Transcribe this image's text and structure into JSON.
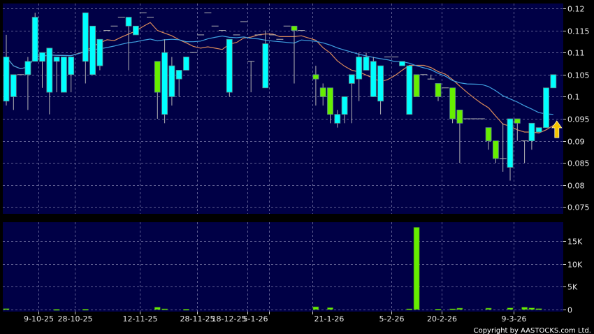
{
  "chart_data": [
    {
      "type": "candlestick",
      "panel": "price",
      "y_ticks": [
        0.12,
        0.115,
        0.11,
        0.105,
        0.1,
        0.095,
        0.09,
        0.085,
        0.08,
        0.075
      ],
      "y_tick_labels": [
        "0.12",
        "0.115",
        "0.11",
        "0.105",
        "0.1",
        "0.095",
        "0.09",
        "0.085",
        "0.08",
        "0.075"
      ],
      "ylim": [
        0.0735,
        0.1208
      ],
      "grid": true,
      "colors": {
        "up": "#00ffff",
        "down": "#66ee00",
        "wick": "#b4b4b4",
        "ma_short": "#d9895a",
        "ma_long": "#3fa0e0",
        "background": "#000046"
      },
      "moving_averages": [
        {
          "period": 10,
          "color": "#d9895a"
        },
        {
          "period": 20,
          "color": "#3fa0e0"
        }
      ],
      "ohlc": [
        [
          0.099,
          0.114,
          0.098,
          0.109
        ],
        [
          0.1,
          0.105,
          0.097,
          0.105
        ],
        [
          0.105,
          0.105,
          0.105,
          0.105
        ],
        [
          0.105,
          0.109,
          0.097,
          0.108
        ],
        [
          0.108,
          0.119,
          0.108,
          0.118
        ],
        [
          0.108,
          0.11,
          0.102,
          0.11
        ],
        [
          0.101,
          0.111,
          0.096,
          0.111
        ],
        [
          0.108,
          0.109,
          0.101,
          0.109
        ],
        [
          0.101,
          0.109,
          0.101,
          0.109
        ],
        [
          0.105,
          0.109,
          0.101,
          0.109
        ],
        null,
        [
          0.108,
          0.119,
          0.103,
          0.119
        ],
        [
          0.105,
          0.116,
          0.105,
          0.116
        ],
        [
          0.107,
          0.113,
          0.106,
          0.113
        ],
        [
          0.115,
          0.115,
          0.115,
          0.115
        ],
        [
          0.116,
          0.116,
          0.116,
          0.116
        ],
        [
          0.118,
          0.118,
          0.118,
          0.118
        ],
        [
          0.116,
          0.118,
          0.106,
          0.118
        ],
        [
          0.114,
          0.116,
          0.114,
          0.116
        ],
        [
          0.119,
          0.119,
          0.119,
          0.119
        ],
        [
          0.118,
          0.118,
          0.118,
          0.118
        ],
        [
          0.108,
          0.108,
          0.095,
          0.101
        ],
        [
          0.096,
          0.113,
          0.094,
          0.11
        ],
        [
          0.1,
          0.109,
          0.098,
          0.107
        ],
        [
          0.104,
          0.106,
          0.1,
          0.106
        ],
        [
          0.106,
          0.109,
          0.106,
          0.109
        ],
        [
          0.11,
          0.11,
          0.11,
          0.11
        ],
        [
          0.114,
          0.114,
          0.114,
          0.114
        ],
        [
          0.119,
          0.119,
          0.119,
          0.119
        ],
        [
          0.116,
          0.116,
          0.116,
          0.116
        ],
        [
          0.115,
          0.115,
          0.115,
          0.115
        ],
        [
          0.101,
          0.113,
          0.1,
          0.113
        ],
        [
          0.114,
          0.114,
          0.114,
          0.114
        ],
        [
          0.117,
          0.117,
          0.117,
          0.117
        ],
        [
          0.108,
          0.108,
          0.101,
          0.108
        ],
        [
          0.114,
          0.114,
          0.114,
          0.114
        ],
        [
          0.102,
          0.115,
          0.102,
          0.112
        ],
        [
          0.114,
          0.114,
          0.114,
          0.114
        ],
        [
          0.113,
          0.113,
          0.113,
          0.113
        ],
        [
          0.116,
          0.116,
          0.116,
          0.116
        ],
        [
          0.116,
          0.116,
          0.103,
          0.115
        ],
        [
          0.115,
          0.115,
          0.115,
          0.115
        ],
        null,
        [
          0.105,
          0.107,
          0.098,
          0.104
        ],
        [
          0.102,
          0.103,
          0.098,
          0.1
        ],
        [
          0.102,
          0.102,
          0.094,
          0.096
        ],
        [
          0.094,
          0.097,
          0.093,
          0.096
        ],
        [
          0.096,
          0.1,
          0.094,
          0.1
        ],
        [
          0.103,
          0.105,
          0.094,
          0.105
        ],
        [
          0.104,
          0.11,
          0.099,
          0.109
        ],
        [
          0.106,
          0.11,
          0.106,
          0.109
        ],
        [
          0.1,
          0.109,
          0.1,
          0.108
        ],
        [
          0.099,
          0.107,
          0.096,
          0.107
        ],
        [
          0.109,
          0.109,
          0.109,
          0.109
        ],
        [
          0.109,
          0.109,
          0.109,
          0.109
        ],
        [
          0.107,
          0.108,
          0.107,
          0.108
        ],
        [
          0.096,
          0.107,
          0.096,
          0.107
        ],
        [
          0.105,
          0.105,
          0.1,
          0.1
        ],
        [
          0.105,
          0.105,
          0.105,
          0.105
        ],
        [
          0.104,
          0.105,
          0.104,
          0.104
        ],
        [
          0.103,
          0.103,
          0.099,
          0.1
        ],
        [
          0.102,
          0.102,
          0.102,
          0.102
        ],
        [
          0.102,
          0.102,
          0.094,
          0.095
        ],
        [
          0.097,
          0.097,
          0.085,
          0.094
        ],
        [
          0.095,
          0.095,
          0.095,
          0.095
        ],
        [
          0.095,
          0.095,
          0.095,
          0.095
        ],
        [
          0.095,
          0.095,
          0.095,
          0.095
        ],
        [
          0.093,
          0.093,
          0.088,
          0.09
        ],
        [
          0.09,
          0.09,
          0.085,
          0.086
        ],
        [
          0.086,
          0.094,
          0.083,
          0.086
        ],
        [
          0.084,
          0.095,
          0.081,
          0.095
        ],
        [
          0.095,
          0.095,
          0.09,
          0.094
        ],
        [
          0.09,
          0.09,
          0.085,
          0.09
        ],
        [
          0.09,
          0.094,
          0.088,
          0.094
        ],
        [
          0.092,
          0.093,
          0.092,
          0.093
        ],
        [
          0.093,
          0.102,
          0.093,
          0.102
        ],
        [
          0.102,
          0.105,
          0.102,
          0.105
        ]
      ],
      "last_marker": "up-arrow",
      "last_marker_color": "#f5c400"
    },
    {
      "type": "bar",
      "panel": "volume",
      "y_ticks": [
        0,
        5000,
        10000,
        15000
      ],
      "y_tick_labels": [
        "0",
        "5K",
        "10K",
        "15K"
      ],
      "ylim": [
        0,
        19000
      ],
      "grid": true,
      "bar_color": "#66ee00",
      "values": [
        200,
        0,
        0,
        0,
        0,
        0,
        0,
        50,
        0,
        0,
        0,
        80,
        0,
        0,
        0,
        0,
        0,
        0,
        0,
        0,
        0,
        500,
        150,
        0,
        0,
        80,
        0,
        0,
        0,
        0,
        0,
        0,
        0,
        0,
        0,
        0,
        0,
        0,
        0,
        0,
        0,
        0,
        0,
        600,
        0,
        400,
        0,
        0,
        0,
        0,
        0,
        0,
        0,
        0,
        0,
        0,
        150,
        18000,
        0,
        0,
        100,
        0,
        150,
        300,
        0,
        0,
        0,
        300,
        0,
        0,
        350,
        0,
        500,
        350,
        200,
        0,
        0
      ]
    }
  ],
  "x_ticks": [
    {
      "label": "9-10-25",
      "at": 4.5
    },
    {
      "label": "28-10-25",
      "at": 9.5
    },
    {
      "label": "12-11-25",
      "at": 18.5
    },
    {
      "label": "28-11-25",
      "at": 26.5
    },
    {
      "label": "18-12-25",
      "at": 33.5
    },
    {
      "label": "5-1-26",
      "at": 36.5
    },
    {
      "label": "21-1-26",
      "at": 42.5
    },
    {
      "label": "5-2-26",
      "at": 53.5
    },
    {
      "label": "20-2-26",
      "at": 60.5
    },
    {
      "label": "9-3-26",
      "at": 70.5
    }
  ],
  "footer": {
    "copyright": "Copyright by AASTOCKS.com Ltd."
  }
}
